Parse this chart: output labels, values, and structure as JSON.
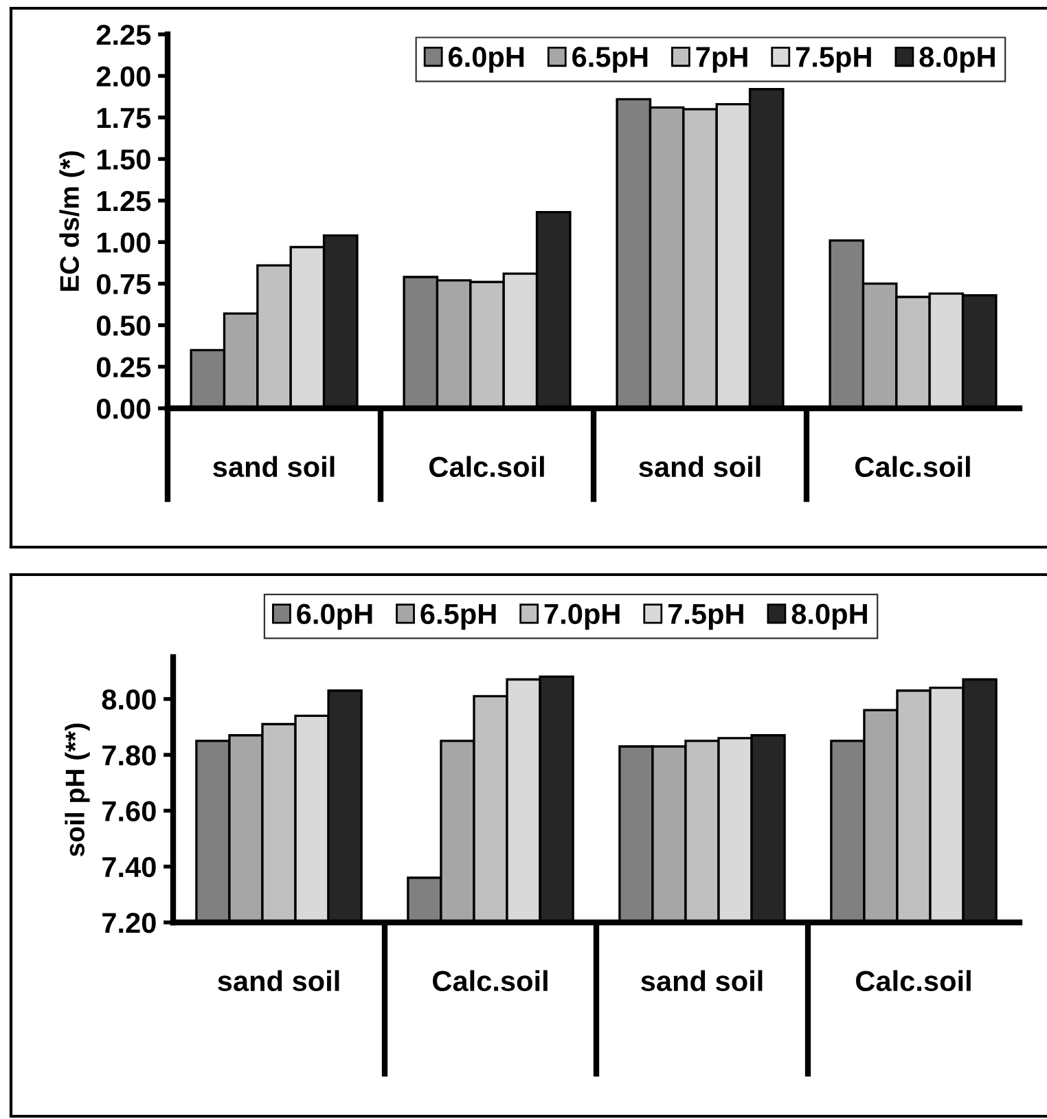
{
  "chart_data": [
    {
      "type": "bar",
      "ylabel": "EC ds/m (*)",
      "categories": [
        "sand soil",
        "Calc.soil",
        "sand soil",
        "Calc.soil"
      ],
      "series": [
        {
          "name": "6.0pH",
          "color": "#808080",
          "values": [
            0.35,
            0.79,
            1.86,
            1.01
          ]
        },
        {
          "name": "6.5pH",
          "color": "#a6a6a6",
          "values": [
            0.57,
            0.77,
            1.81,
            0.75
          ]
        },
        {
          "name": "7pH",
          "color": "#c0c0c0",
          "values": [
            0.86,
            0.76,
            1.8,
            0.67
          ]
        },
        {
          "name": "7.5pH",
          "color": "#d9d9d9",
          "values": [
            0.97,
            0.81,
            1.83,
            0.69
          ]
        },
        {
          "name": "8.0pH",
          "color": "#262626",
          "values": [
            1.04,
            1.18,
            1.92,
            0.68
          ]
        }
      ],
      "ylim": [
        0,
        2.25
      ],
      "yticks": [
        {
          "value": 0,
          "label": "0.00"
        },
        {
          "value": 0.25,
          "label": "0.25"
        },
        {
          "value": 0.5,
          "label": "0.50"
        },
        {
          "value": 0.75,
          "label": "0.75"
        },
        {
          "value": 1,
          "label": "1.00"
        },
        {
          "value": 1.25,
          "label": "1.25"
        },
        {
          "value": 1.5,
          "label": "1.50"
        },
        {
          "value": 1.75,
          "label": "1.75"
        },
        {
          "value": 2,
          "label": "2.00"
        },
        {
          "value": 2.25,
          "label": "2.25"
        }
      ],
      "grid": false,
      "legend": "top right"
    },
    {
      "type": "bar",
      "ylabel": "soil pH (**)",
      "categories": [
        "sand soil",
        "Calc.soil",
        "sand soil",
        "Calc.soil"
      ],
      "series": [
        {
          "name": "6.0pH",
          "color": "#808080",
          "values": [
            7.85,
            7.36,
            7.83,
            7.85
          ]
        },
        {
          "name": "6.5pH",
          "color": "#a6a6a6",
          "values": [
            7.87,
            7.85,
            7.83,
            7.96
          ]
        },
        {
          "name": "7.0pH",
          "color": "#c0c0c0",
          "values": [
            7.91,
            8.01,
            7.85,
            8.03
          ]
        },
        {
          "name": "7.5pH",
          "color": "#d9d9d9",
          "values": [
            7.94,
            8.07,
            7.86,
            8.04
          ]
        },
        {
          "name": "8.0pH",
          "color": "#262626",
          "values": [
            8.03,
            8.08,
            7.87,
            8.07
          ]
        }
      ],
      "ylim": [
        7.2,
        8.15
      ],
      "yticks": [
        {
          "value": 7.2,
          "label": "7.20"
        },
        {
          "value": 7.4,
          "label": "7.40"
        },
        {
          "value": 7.6,
          "label": "7.60"
        },
        {
          "value": 7.8,
          "label": "7.80"
        },
        {
          "value": 8.0,
          "label": "8.00"
        }
      ],
      "grid": false,
      "legend": "top"
    }
  ]
}
